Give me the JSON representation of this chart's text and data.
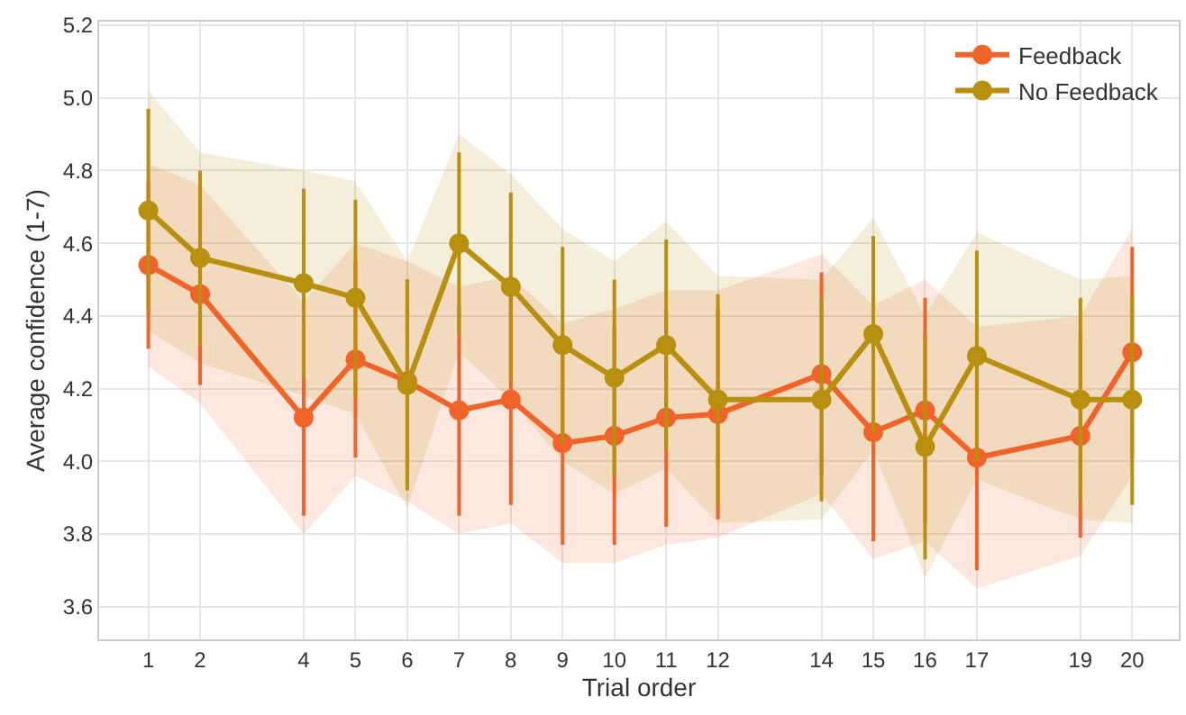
{
  "chart_data": {
    "type": "line",
    "xlabel": "Trial order",
    "ylabel": "Average confidence (1-7)",
    "x": [
      1,
      2,
      4,
      5,
      6,
      7,
      8,
      9,
      10,
      11,
      12,
      14,
      15,
      16,
      17,
      19,
      20
    ],
    "xlim": [
      0.05,
      20.9
    ],
    "xticks": [
      1,
      2,
      4,
      5,
      6,
      7,
      8,
      9,
      10,
      11,
      12,
      14,
      15,
      16,
      17,
      19,
      20
    ],
    "ylim": [
      3.51,
      5.21
    ],
    "yticks": [
      3.6,
      3.8,
      {
        "value": 4,
        "label": "4.0"
      },
      4.2,
      4.4,
      4.6,
      4.8,
      {
        "value": 5,
        "label": "5.0"
      },
      5.2
    ],
    "grid": true,
    "legend": "top right",
    "marker": "circle",
    "line_style": "solid",
    "series": [
      {
        "name": "Feedback",
        "color": "#f0642a",
        "values": [
          4.54,
          4.46,
          4.12,
          4.28,
          4.22,
          4.14,
          4.17,
          4.05,
          4.07,
          4.12,
          4.13,
          4.24,
          4.08,
          4.14,
          4.01,
          4.07,
          4.3
        ],
        "errors": [
          0.23,
          0.25,
          0.27,
          0.27,
          0.28,
          0.29,
          0.29,
          0.28,
          0.3,
          0.3,
          0.29,
          0.28,
          0.3,
          0.31,
          0.31,
          0.28,
          0.29
        ],
        "lower": [
          4.26,
          4.16,
          3.8,
          3.96,
          3.89,
          3.8,
          3.83,
          3.72,
          3.72,
          3.77,
          3.79,
          3.91,
          3.73,
          3.78,
          3.65,
          3.74,
          3.96
        ],
        "upper": [
          4.82,
          4.76,
          4.44,
          4.6,
          4.55,
          4.48,
          4.51,
          4.38,
          4.42,
          4.47,
          4.47,
          4.57,
          4.43,
          4.5,
          4.37,
          4.4,
          4.64
        ]
      },
      {
        "name": "No Feedback",
        "color": "#b8900f",
        "values": [
          4.69,
          4.56,
          4.49,
          4.45,
          4.21,
          4.6,
          4.48,
          4.32,
          4.23,
          4.32,
          4.17,
          4.17,
          4.35,
          4.04,
          4.29,
          4.17,
          4.17
        ],
        "errors": [
          0.28,
          0.24,
          0.26,
          0.27,
          0.29,
          0.25,
          0.26,
          0.27,
          0.27,
          0.29,
          0.29,
          0.28,
          0.27,
          0.31,
          0.29,
          0.28,
          0.29
        ],
        "lower": [
          4.36,
          4.27,
          4.18,
          4.13,
          3.87,
          4.3,
          4.17,
          4.0,
          3.91,
          3.98,
          3.83,
          3.84,
          4.03,
          3.68,
          3.95,
          3.84,
          3.83
        ],
        "upper": [
          5.02,
          4.85,
          4.8,
          4.77,
          4.55,
          4.9,
          4.79,
          4.64,
          4.55,
          4.66,
          4.51,
          4.5,
          4.67,
          4.4,
          4.63,
          4.5,
          4.51
        ]
      }
    ]
  }
}
